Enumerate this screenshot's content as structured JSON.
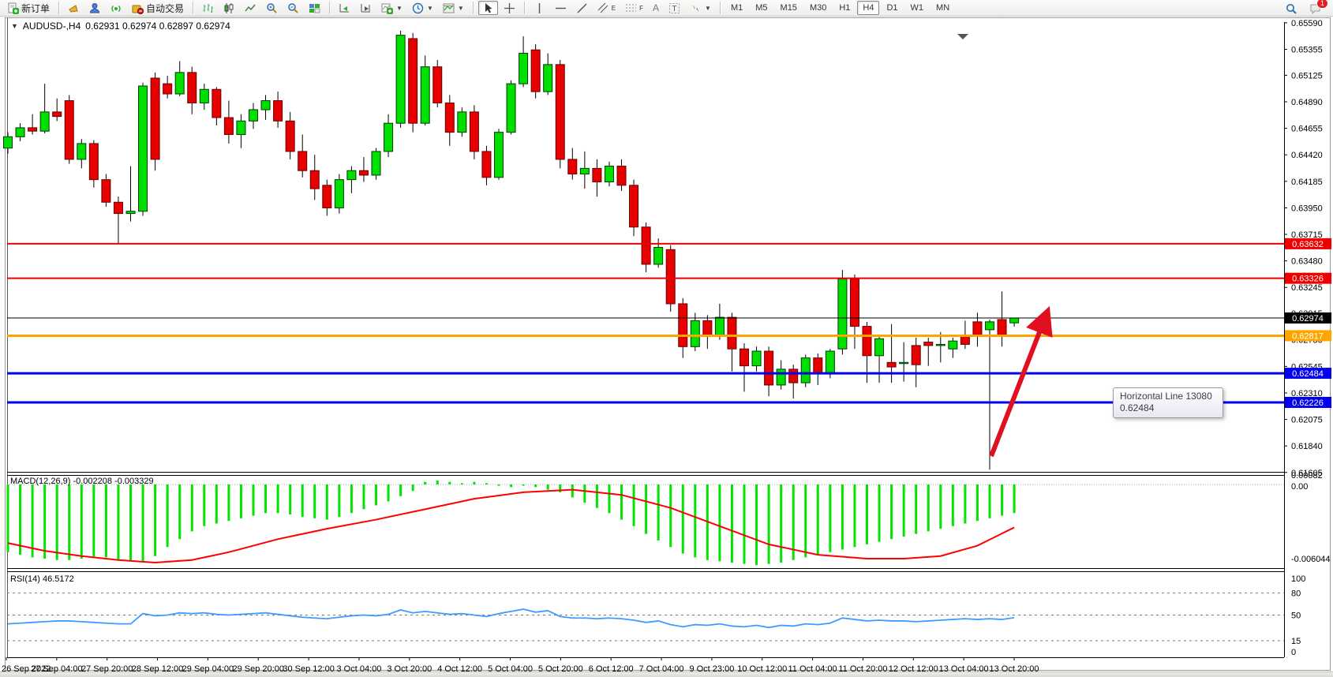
{
  "toolbar": {
    "new_order_label": "新订单",
    "auto_trading_label": "自动交易",
    "periods": [
      "M1",
      "M5",
      "M15",
      "M30",
      "H1",
      "H4",
      "D1",
      "W1",
      "MN"
    ],
    "active_period": "H4",
    "notification_badge": "1",
    "channel_letter": "E",
    "fibo_letter": "F",
    "text_letter": "A",
    "label_letter": "T"
  },
  "chart_header": {
    "symbol": "AUDUSD-,H4",
    "ohlc": "0.62931 0.62974 0.62897 0.62974"
  },
  "tooltip": {
    "line1": "Horizontal Line 13080",
    "line2": "0.62484"
  },
  "chart_data": {
    "type": "candlestick",
    "title": "AUDUSD-,H4",
    "price_axis_ticks": [
      "0.65590",
      "0.65355",
      "0.65125",
      "0.64890",
      "0.64655",
      "0.64420",
      "0.64185",
      "0.63950",
      "0.63715",
      "0.63480",
      "0.63245",
      "0.63015",
      "0.62780",
      "0.62545",
      "0.62310",
      "0.62075",
      "0.61840",
      "0.61605"
    ],
    "horizontal_lines": [
      {
        "price": 0.63632,
        "label": "0.63632",
        "color": "#ee0000",
        "width": 2
      },
      {
        "price": 0.63326,
        "label": "0.63326",
        "color": "#ee0000",
        "width": 2
      },
      {
        "price": 0.62974,
        "label": "0.62974",
        "color": "#000000",
        "width": 1
      },
      {
        "price": 0.62817,
        "label": "0.62817",
        "color": "#ffa500",
        "width": 3
      },
      {
        "price": 0.62484,
        "label": "0.62484",
        "color": "#0000ee",
        "width": 3
      },
      {
        "price": 0.62226,
        "label": "0.62226",
        "color": "#0000ee",
        "width": 3
      }
    ],
    "candles_ohlc": [
      [
        0.6448,
        0.6462,
        0.6443,
        0.6458
      ],
      [
        0.6458,
        0.647,
        0.6454,
        0.6466
      ],
      [
        0.6466,
        0.6478,
        0.646,
        0.6463
      ],
      [
        0.6463,
        0.6505,
        0.6461,
        0.648
      ],
      [
        0.648,
        0.6492,
        0.6472,
        0.6476
      ],
      [
        0.649,
        0.6495,
        0.6434,
        0.6438
      ],
      [
        0.6438,
        0.6456,
        0.643,
        0.6452
      ],
      [
        0.6452,
        0.6455,
        0.6413,
        0.642
      ],
      [
        0.642,
        0.6425,
        0.6396,
        0.64
      ],
      [
        0.64,
        0.6405,
        0.6363,
        0.639
      ],
      [
        0.639,
        0.6432,
        0.6383,
        0.6392
      ],
      [
        0.6392,
        0.6506,
        0.6388,
        0.6503
      ],
      [
        0.651,
        0.6515,
        0.6428,
        0.6438
      ],
      [
        0.6505,
        0.6512,
        0.6492,
        0.6496
      ],
      [
        0.6496,
        0.6525,
        0.6494,
        0.6515
      ],
      [
        0.6515,
        0.652,
        0.6478,
        0.6488
      ],
      [
        0.6488,
        0.6505,
        0.6482,
        0.65
      ],
      [
        0.65,
        0.6502,
        0.6468,
        0.6475
      ],
      [
        0.6475,
        0.649,
        0.6452,
        0.646
      ],
      [
        0.646,
        0.6478,
        0.6448,
        0.6472
      ],
      [
        0.6472,
        0.6488,
        0.6465,
        0.6482
      ],
      [
        0.6482,
        0.6495,
        0.6473,
        0.649
      ],
      [
        0.649,
        0.6498,
        0.6466,
        0.6472
      ],
      [
        0.6472,
        0.648,
        0.6438,
        0.6445
      ],
      [
        0.6445,
        0.646,
        0.6422,
        0.6428
      ],
      [
        0.6428,
        0.6442,
        0.6402,
        0.6412
      ],
      [
        0.6415,
        0.642,
        0.6388,
        0.6395
      ],
      [
        0.6395,
        0.6425,
        0.639,
        0.642
      ],
      [
        0.642,
        0.6432,
        0.6408,
        0.6428
      ],
      [
        0.6428,
        0.644,
        0.6418,
        0.6424
      ],
      [
        0.6424,
        0.6448,
        0.642,
        0.6445
      ],
      [
        0.6445,
        0.6478,
        0.644,
        0.647
      ],
      [
        0.647,
        0.6552,
        0.6466,
        0.6548
      ],
      [
        0.6545,
        0.655,
        0.6462,
        0.647
      ],
      [
        0.647,
        0.653,
        0.6468,
        0.652
      ],
      [
        0.652,
        0.6526,
        0.6484,
        0.6488
      ],
      [
        0.6488,
        0.6495,
        0.645,
        0.6462
      ],
      [
        0.6462,
        0.6484,
        0.6458,
        0.648
      ],
      [
        0.648,
        0.6486,
        0.6438,
        0.6445
      ],
      [
        0.6445,
        0.645,
        0.6415,
        0.6422
      ],
      [
        0.6422,
        0.6465,
        0.642,
        0.6462
      ],
      [
        0.6462,
        0.6508,
        0.646,
        0.6505
      ],
      [
        0.6505,
        0.6547,
        0.6502,
        0.6532
      ],
      [
        0.6535,
        0.654,
        0.6492,
        0.6498
      ],
      [
        0.6498,
        0.6532,
        0.6495,
        0.6522
      ],
      [
        0.6522,
        0.6526,
        0.643,
        0.6438
      ],
      [
        0.6438,
        0.6448,
        0.642,
        0.6425
      ],
      [
        0.6425,
        0.6445,
        0.6412,
        0.643
      ],
      [
        0.643,
        0.6438,
        0.6405,
        0.6418
      ],
      [
        0.6418,
        0.6436,
        0.6414,
        0.6432
      ],
      [
        0.6432,
        0.6438,
        0.641,
        0.6415
      ],
      [
        0.6415,
        0.642,
        0.637,
        0.6378
      ],
      [
        0.6378,
        0.6382,
        0.6338,
        0.6345
      ],
      [
        0.6345,
        0.6368,
        0.6342,
        0.636
      ],
      [
        0.6358,
        0.6362,
        0.6303,
        0.631
      ],
      [
        0.631,
        0.6315,
        0.6262,
        0.6272
      ],
      [
        0.6272,
        0.6302,
        0.6268,
        0.6295
      ],
      [
        0.6295,
        0.63,
        0.627,
        0.6282
      ],
      [
        0.6282,
        0.631,
        0.6278,
        0.6298
      ],
      [
        0.6298,
        0.6302,
        0.625,
        0.627
      ],
      [
        0.627,
        0.6275,
        0.6232,
        0.6255
      ],
      [
        0.6255,
        0.6272,
        0.625,
        0.6268
      ],
      [
        0.6268,
        0.6272,
        0.6228,
        0.6238
      ],
      [
        0.6238,
        0.626,
        0.6234,
        0.6252
      ],
      [
        0.6252,
        0.6256,
        0.6226,
        0.624
      ],
      [
        0.624,
        0.6265,
        0.6236,
        0.6262
      ],
      [
        0.6262,
        0.6266,
        0.6238,
        0.6248
      ],
      [
        0.6248,
        0.627,
        0.6244,
        0.6268
      ],
      [
        0.627,
        0.634,
        0.6265,
        0.6332
      ],
      [
        0.6332,
        0.6336,
        0.627,
        0.629
      ],
      [
        0.629,
        0.6294,
        0.624,
        0.6264
      ],
      [
        0.6264,
        0.6282,
        0.624,
        0.6279
      ],
      [
        0.6258,
        0.6292,
        0.624,
        0.6254
      ],
      [
        0.6257,
        0.6276,
        0.6241,
        0.6258
      ],
      [
        0.6273,
        0.628,
        0.6236,
        0.6256
      ],
      [
        0.6276,
        0.628,
        0.6255,
        0.6273
      ],
      [
        0.6273,
        0.6285,
        0.6258,
        0.6274
      ],
      [
        0.627,
        0.628,
        0.6262,
        0.6277
      ],
      [
        0.6281,
        0.6295,
        0.627,
        0.6274
      ],
      [
        0.6294,
        0.6302,
        0.6272,
        0.6281
      ],
      [
        0.6287,
        0.6296,
        0.6163,
        0.6294
      ],
      [
        0.6296,
        0.6321,
        0.6272,
        0.6281
      ],
      [
        0.62931,
        0.62974,
        0.62897,
        0.62974
      ]
    ],
    "macd": {
      "label": "MACD(12,26,9) -0.002208 -0.003329",
      "axis_labels": [
        "0.00082",
        "0.00",
        "-0.006044"
      ],
      "histogram": [
        -0.0052,
        -0.0054,
        -0.0056,
        -0.0057,
        -0.0058,
        -0.0058,
        -0.0057,
        -0.0056,
        -0.0056,
        -0.0058,
        -0.0059,
        -0.006,
        -0.0055,
        -0.0048,
        -0.0042,
        -0.0036,
        -0.0032,
        -0.003,
        -0.0028,
        -0.0026,
        -0.0024,
        -0.0022,
        -0.0022,
        -0.0023,
        -0.0025,
        -0.0026,
        -0.0027,
        -0.0025,
        -0.0022,
        -0.0019,
        -0.0016,
        -0.0013,
        -0.0009,
        -0.0005,
        0.0002,
        0.0003,
        0.0002,
        0.0001,
        0.0002,
        0.0001,
        -0.0001,
        -0.0002,
        -0.0001,
        -0.0002,
        -0.0004,
        -0.0006,
        -0.001,
        -0.0014,
        -0.0018,
        -0.0022,
        -0.0027,
        -0.0032,
        -0.0038,
        -0.0043,
        -0.0048,
        -0.0053,
        -0.0056,
        -0.0058,
        -0.0059,
        -0.006,
        -0.0061,
        -0.0062,
        -0.0061,
        -0.006,
        -0.0058,
        -0.0056,
        -0.0054,
        -0.0052,
        -0.005,
        -0.0048,
        -0.0046,
        -0.0044,
        -0.0042,
        -0.004,
        -0.0038,
        -0.0036,
        -0.0034,
        -0.0032,
        -0.003,
        -0.0028,
        -0.0026,
        -0.0024,
        -0.0022
      ],
      "signal_points": [
        [
          0,
          -0.0045
        ],
        [
          3,
          -0.0051
        ],
        [
          6,
          -0.0055
        ],
        [
          9,
          -0.0058
        ],
        [
          12,
          -0.006
        ],
        [
          15,
          -0.0058
        ],
        [
          18,
          -0.0052
        ],
        [
          22,
          -0.0042
        ],
        [
          26,
          -0.0034
        ],
        [
          30,
          -0.0027
        ],
        [
          34,
          -0.0019
        ],
        [
          38,
          -0.0011
        ],
        [
          42,
          -0.0006
        ],
        [
          46,
          -0.0004
        ],
        [
          50,
          -0.0008
        ],
        [
          54,
          -0.0018
        ],
        [
          58,
          -0.0032
        ],
        [
          62,
          -0.0046
        ],
        [
          66,
          -0.0054
        ],
        [
          70,
          -0.0057
        ],
        [
          73,
          -0.0057
        ],
        [
          76,
          -0.0055
        ],
        [
          79,
          -0.0047
        ],
        [
          82,
          -0.0033
        ]
      ]
    },
    "rsi": {
      "label": "RSI(14) 46.5172",
      "axis_labels": [
        "100",
        "80",
        "50",
        "15",
        "0"
      ],
      "levels": [
        100,
        80,
        50,
        15,
        0
      ],
      "dashed_levels": [
        80,
        50,
        15
      ],
      "values": [
        38,
        39,
        40,
        41,
        42,
        42,
        41,
        40,
        39,
        38,
        38,
        52,
        49,
        50,
        53,
        52,
        53,
        51,
        50,
        51,
        52,
        53,
        51,
        49,
        47,
        46,
        45,
        47,
        49,
        50,
        49,
        51,
        57,
        53,
        55,
        53,
        51,
        52,
        50,
        48,
        52,
        55,
        58,
        54,
        56,
        48,
        46,
        46,
        45,
        46,
        45,
        43,
        40,
        42,
        37,
        34,
        37,
        36,
        38,
        35,
        34,
        36,
        33,
        36,
        35,
        38,
        37,
        39,
        46,
        44,
        42,
        43,
        42,
        42,
        41,
        42,
        43,
        44,
        45,
        44,
        45,
        44,
        46.5
      ]
    },
    "time_labels": [
      "26 Sep 2022",
      "27 Sep 04:00",
      "27 Sep 20:00",
      "28 Sep 12:00",
      "29 Sep 04:00",
      "29 Sep 20:00",
      "30 Sep 12:00",
      "3 Oct 04:00",
      "3 Oct 20:00",
      "4 Oct 12:00",
      "5 Oct 04:00",
      "5 Oct 20:00",
      "6 Oct 12:00",
      "7 Oct 04:00",
      "9 Oct 23:00",
      "10 Oct 12:00",
      "11 Oct 04:00",
      "11 Oct 20:00",
      "12 Oct 12:00",
      "13 Oct 04:00",
      "13 Oct 20:00"
    ],
    "annotations": {
      "arrow": {
        "from_xy": [
          1256,
          578
        ],
        "to_xy": [
          1326,
          398
        ],
        "color": "#e01020"
      }
    },
    "colors": {
      "bull": "#00e000",
      "bear": "#e60000",
      "wick": "#000000",
      "macd_hist": "#00e400",
      "macd_signal": "#ff0000",
      "rsi_line": "#3e9bff"
    }
  }
}
